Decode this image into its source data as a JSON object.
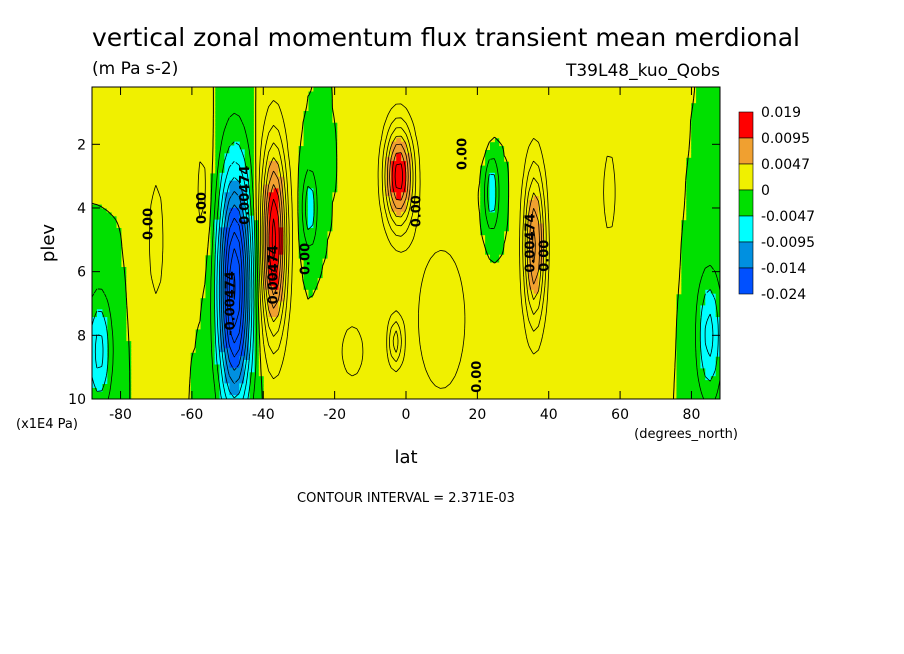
{
  "chart_data": {
    "type": "heatmap",
    "title": "vertical zonal momentum flux transient mean merdional",
    "units": "(m Pa s-2)",
    "experiment": "T39L48_kuo_Qobs",
    "xlabel": "lat",
    "x_units": "(degrees_north)",
    "ylabel": "plev",
    "y_units": "(x1E4 Pa)",
    "xlim": [
      -88,
      88
    ],
    "ylim": [
      10,
      0.2
    ],
    "x_ticks": [
      -80,
      -60,
      -40,
      -20,
      0,
      20,
      40,
      60,
      80
    ],
    "x_tick_labels": [
      "-80",
      "-60",
      "-40",
      "-20",
      "0",
      "20",
      "40",
      "60",
      "80"
    ],
    "y_ticks": [
      2,
      4,
      6,
      8,
      10
    ],
    "y_tick_labels": [
      "2",
      "4",
      "6",
      "8",
      "10"
    ],
    "footer": "CONTOUR INTERVAL = 2.371E-03",
    "colorbar": {
      "labels": [
        "0.019",
        "0.0095",
        "0.0047",
        "0",
        "-0.0047",
        "-0.0095",
        "-0.014",
        "-0.024"
      ],
      "colors": [
        "#ff0000",
        "#f0a030",
        "#f0f000",
        "#00e000",
        "#00ffff",
        "#0090e0",
        "#0050ff"
      ]
    },
    "features": [
      {
        "lat": -37,
        "plev": 5.0,
        "rx": 3.5,
        "ry": 3.0,
        "amp": 0.02
      },
      {
        "lat": -2,
        "plev": 3.0,
        "rx": 4.0,
        "ry": 1.6,
        "amp": 0.018
      },
      {
        "lat": 36,
        "plev": 5.2,
        "rx": 3.0,
        "ry": 2.5,
        "amp": 0.015
      },
      {
        "lat": -48,
        "plev": 6.5,
        "rx": 4.5,
        "ry": 3.6,
        "amp": -0.024
      },
      {
        "lat": -86,
        "plev": 8.5,
        "rx": 3.5,
        "ry": 1.8,
        "amp": -0.008
      },
      {
        "lat": 85,
        "plev": 8.0,
        "rx": 3.5,
        "ry": 2.0,
        "amp": -0.008
      },
      {
        "lat": -27,
        "plev": 4.0,
        "rx": 2.0,
        "ry": 1.2,
        "amp": -0.007
      },
      {
        "lat": 24,
        "plev": 3.5,
        "rx": 2.0,
        "ry": 1.2,
        "amp": -0.007
      },
      {
        "lat": -3,
        "plev": 8.2,
        "rx": 2.0,
        "ry": 0.8,
        "amp": 0.008
      },
      {
        "lat": 10,
        "plev": 7.5,
        "rx": 9.0,
        "ry": 3.0,
        "amp": 0.004
      },
      {
        "lat": -15,
        "plev": 8.5,
        "rx": 6.0,
        "ry": 1.6,
        "amp": 0.003
      },
      {
        "lat": -70,
        "plev": 5.0,
        "rx": 4.0,
        "ry": 3.5,
        "amp": 0.003
      },
      {
        "lat": -57,
        "plev": 3.5,
        "rx": 3.0,
        "ry": 2.5,
        "amp": 0.003
      },
      {
        "lat": 57,
        "plev": 3.5,
        "rx": 3.5,
        "ry": 2.5,
        "amp": 0.003
      },
      {
        "lat": 70,
        "plev": 4.5,
        "rx": 3.0,
        "ry": 2.5,
        "amp": 0.002
      },
      {
        "lat": -80,
        "plev": 1.5,
        "rx": 6.0,
        "ry": 1.2,
        "amp": 0.002
      },
      {
        "lat": 20,
        "plev": 1.5,
        "rx": 5.0,
        "ry": 1.2,
        "amp": 0.002
      }
    ],
    "contour_labels": [
      {
        "text": "0.00",
        "lat": -71,
        "plev": 4.5
      },
      {
        "text": "0.00",
        "lat": -56,
        "plev": 4.0
      },
      {
        "text": "0.00",
        "lat": -27,
        "plev": 5.6
      },
      {
        "text": "0.00",
        "lat": 4,
        "plev": 4.1
      },
      {
        "text": "0.00",
        "lat": 17,
        "plev": 2.3
      },
      {
        "text": "0.00",
        "lat": 21,
        "plev": 9.3
      },
      {
        "text": "0.00",
        "lat": 40,
        "plev": 5.5
      },
      {
        "text": "0.00474",
        "lat": -44,
        "plev": 3.6
      },
      {
        "text": "0.00474",
        "lat": -36,
        "plev": 6.1
      },
      {
        "text": "0.00474",
        "lat": 36,
        "plev": 5.1
      },
      {
        "text": "-0.00474",
        "lat": -48,
        "plev": 7.0
      }
    ]
  }
}
